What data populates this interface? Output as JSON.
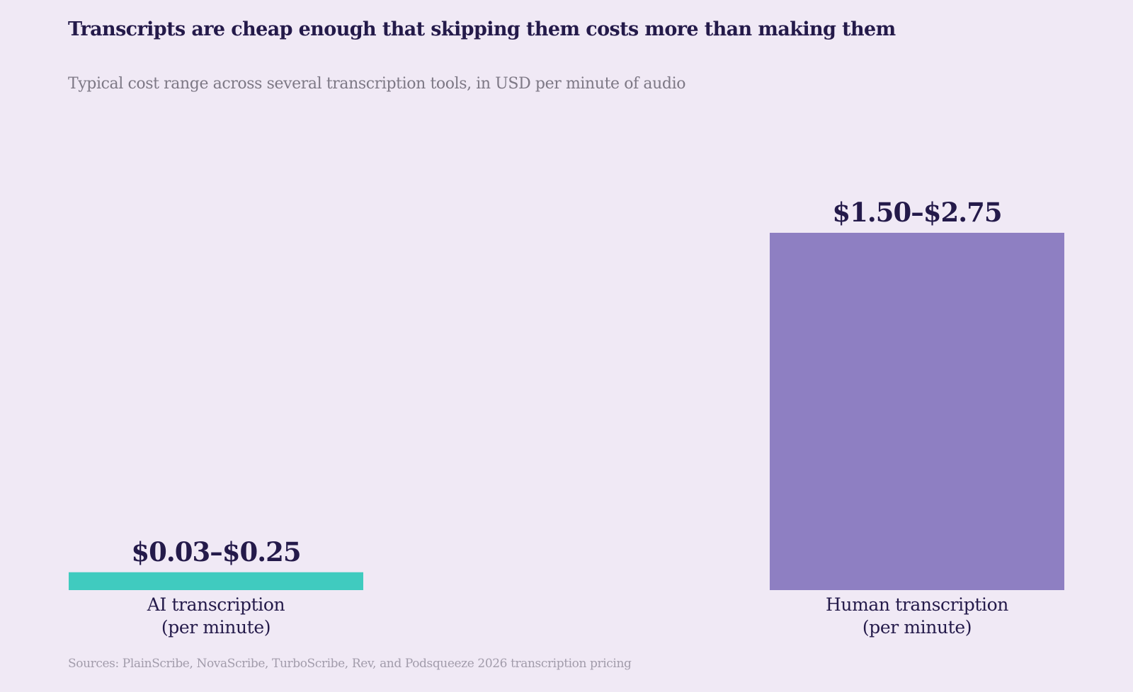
{
  "chart_data": {
    "type": "bar",
    "title": "Transcripts are cheap enough that skipping them costs more than making them",
    "subtitle": "Typical cost range across several transcription tools, in USD per minute of audio",
    "source": "Sources: PlainScribe, NovaScribe, TurboScribe, Rev, and Podsqueeze 2026 transcription pricing",
    "categories": [
      {
        "label_lines": [
          "AI transcription",
          "(per minute)"
        ],
        "range": [
          0.03,
          0.25
        ],
        "value": 0.11,
        "value_label": "$0.03–$0.25",
        "color": "#40cbbf"
      },
      {
        "label_lines": [
          "Human transcription",
          "(per minute)"
        ],
        "range": [
          1.5,
          2.75
        ],
        "value": 2.2,
        "value_label": "$1.50–$2.75",
        "color": "#8e7fc2"
      }
    ],
    "ylim": [
      0,
      2.2
    ],
    "grid": false,
    "legend": "none"
  }
}
